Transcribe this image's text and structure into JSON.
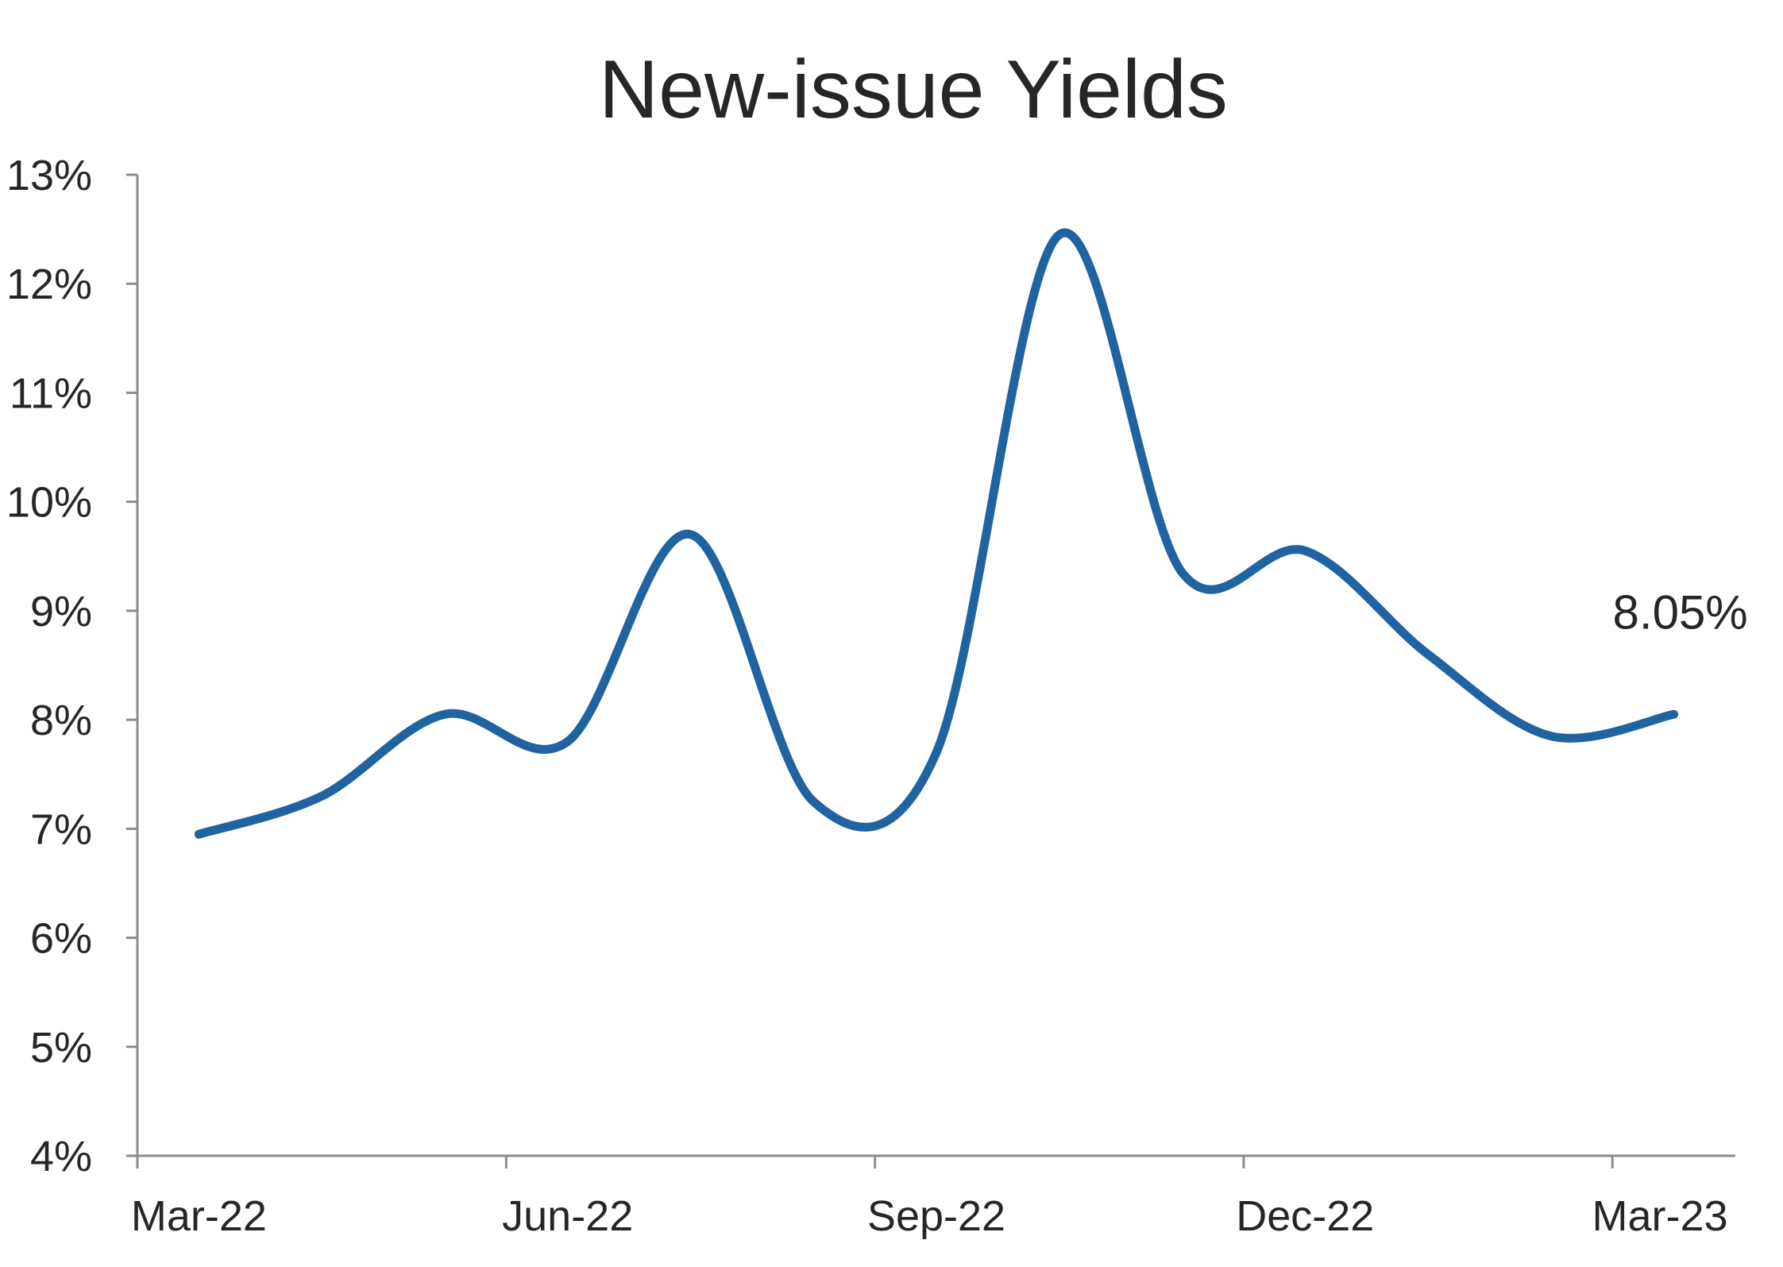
{
  "chart_data": {
    "type": "line",
    "title": "New-issue Yields",
    "xlabel": "",
    "ylabel": "",
    "x_tick_labels": [
      "Mar-22",
      "Jun-22",
      "Sep-22",
      "Dec-22",
      "Mar-23"
    ],
    "y_tick_labels": [
      "4%",
      "5%",
      "6%",
      "7%",
      "8%",
      "9%",
      "10%",
      "11%",
      "12%",
      "13%"
    ],
    "ylim": [
      4,
      13
    ],
    "y_unit": "%",
    "grid": false,
    "legend": "none",
    "series": [
      {
        "color": "#1f64a0",
        "x": [
          "Mar-22",
          "Apr-22",
          "May-22",
          "Jun-22",
          "Jul-22",
          "Aug-22",
          "Sep-22",
          "Oct-22",
          "Nov-22",
          "Dec-22",
          "Jan-23",
          "Feb-23",
          "Mar-23"
        ],
        "values": [
          6.95,
          7.3,
          8.05,
          7.8,
          9.7,
          7.25,
          7.7,
          12.45,
          9.35,
          9.55,
          8.6,
          7.85,
          8.05
        ]
      }
    ],
    "annotations": [
      {
        "text": "8.05%",
        "x": "Mar-23",
        "y": 8.05
      }
    ]
  }
}
